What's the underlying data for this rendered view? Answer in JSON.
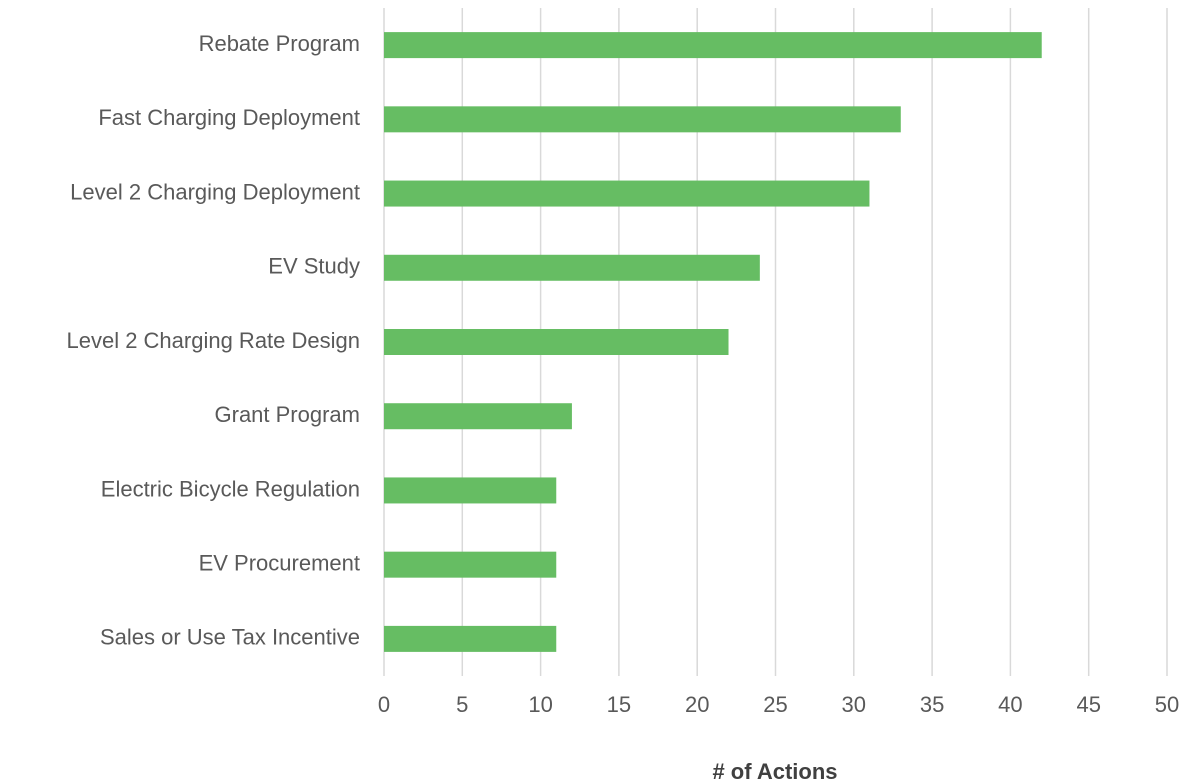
{
  "chart_data": {
    "type": "bar",
    "orientation": "horizontal",
    "x_label": "# of Actions",
    "categories": [
      "Rebate Program",
      "Fast Charging Deployment",
      "Level 2 Charging Deployment",
      "EV Study",
      "Level 2 Charging Rate Design",
      "Grant Program",
      "Electric Bicycle Regulation",
      "EV Procurement",
      "Sales or Use Tax Incentive"
    ],
    "values": [
      42,
      33,
      31,
      24,
      22,
      12,
      11,
      11,
      11
    ],
    "color": "#66bd63",
    "xlim": [
      0,
      50
    ],
    "xticks": [
      0,
      5,
      10,
      15,
      20,
      25,
      30,
      35,
      40,
      45,
      50
    ],
    "grid": true
  }
}
